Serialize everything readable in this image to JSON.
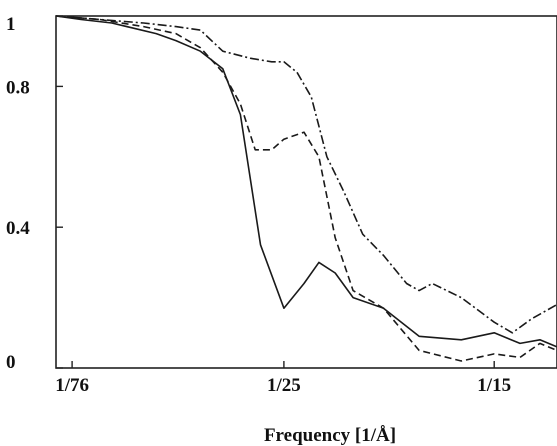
{
  "chart_data": {
    "type": "line",
    "title": "",
    "xlabel": "Frequency [1/Å]",
    "ylabel": "",
    "x_scale": "reciprocal",
    "xlim": [
      90,
      13.4
    ],
    "ylim": [
      0,
      1
    ],
    "x_ticks": [
      {
        "value": 76,
        "label": "1/76"
      },
      {
        "value": 25,
        "label": "1/25"
      },
      {
        "value": 15,
        "label": "1/15"
      }
    ],
    "y_ticks": [
      {
        "value": 0,
        "label": "0"
      },
      {
        "value": 0.4,
        "label": "0.4"
      },
      {
        "value": 0.8,
        "label": "0.8"
      },
      {
        "value": 1,
        "label": "1"
      }
    ],
    "grid": false,
    "series": [
      {
        "style": "solid",
        "color": "#1a1a1a",
        "x": [
          90,
          70,
          55,
          42,
          38,
          34,
          31,
          29,
          27,
          25,
          23.5,
          22.5,
          21.5,
          20.5,
          19,
          17.5,
          16,
          15,
          14.3,
          13.8,
          13.4
        ],
        "y": [
          1.0,
          0.99,
          0.98,
          0.95,
          0.93,
          0.9,
          0.85,
          0.72,
          0.35,
          0.17,
          0.24,
          0.3,
          0.27,
          0.2,
          0.17,
          0.09,
          0.08,
          0.1,
          0.07,
          0.08,
          0.06
        ]
      },
      {
        "style": "dashed",
        "color": "#1a1a1a",
        "x": [
          90,
          60,
          45,
          38,
          34,
          31,
          29,
          27.5,
          26,
          25,
          23.5,
          22.5,
          21.5,
          20.5,
          19,
          17.5,
          16,
          15,
          14.3,
          13.8,
          13.4
        ],
        "y": [
          1.0,
          0.99,
          0.97,
          0.95,
          0.91,
          0.84,
          0.75,
          0.62,
          0.62,
          0.65,
          0.67,
          0.6,
          0.37,
          0.22,
          0.17,
          0.05,
          0.02,
          0.04,
          0.03,
          0.07,
          0.05
        ]
      },
      {
        "style": "dash-dot",
        "color": "#1a1a1a",
        "x": [
          90,
          60,
          45,
          38,
          34,
          31,
          28,
          26,
          25,
          24,
          23,
          22,
          21,
          20,
          19,
          18,
          17.5,
          17,
          16,
          15,
          14.5,
          14,
          13.4
        ],
        "y": [
          1.0,
          0.99,
          0.98,
          0.97,
          0.96,
          0.9,
          0.88,
          0.87,
          0.87,
          0.84,
          0.77,
          0.6,
          0.5,
          0.38,
          0.32,
          0.24,
          0.22,
          0.24,
          0.2,
          0.13,
          0.1,
          0.14,
          0.18
        ]
      }
    ]
  }
}
